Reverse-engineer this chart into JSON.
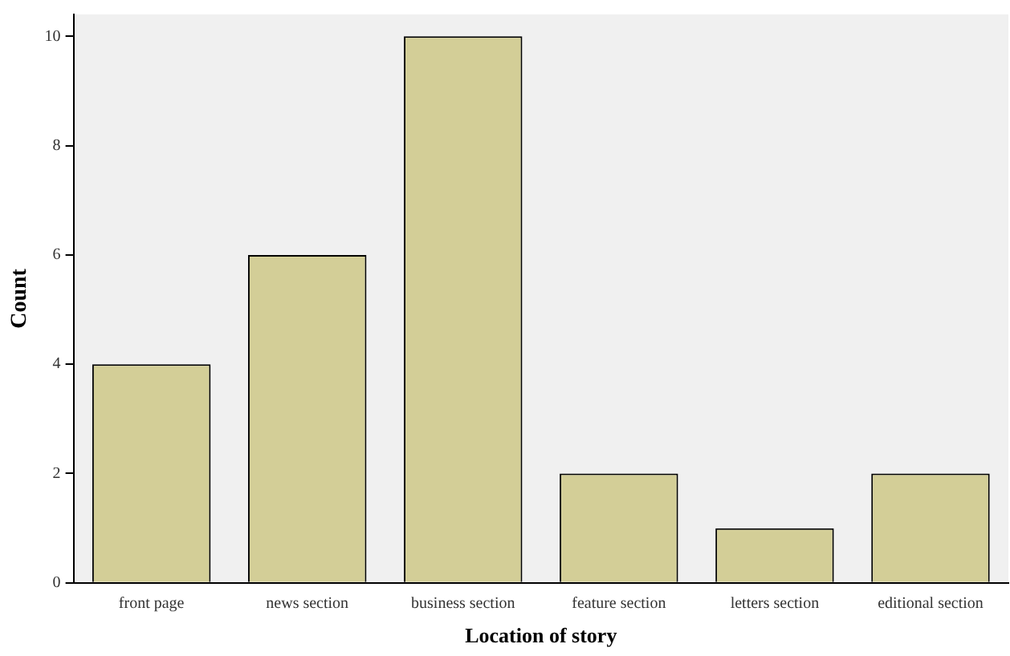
{
  "chart_data": {
    "type": "bar",
    "xlabel": "Location of story",
    "ylabel": "Count",
    "categories": [
      "front page",
      "news section",
      "business section",
      "feature section",
      "letters section",
      "editional section"
    ],
    "values": [
      4,
      6,
      10,
      2,
      1,
      2
    ],
    "color": "#d3ce97",
    "ylim": [
      0,
      10.4
    ],
    "yticks": [
      0,
      2,
      4,
      6,
      8,
      10
    ],
    "grid": false,
    "legend": false
  }
}
